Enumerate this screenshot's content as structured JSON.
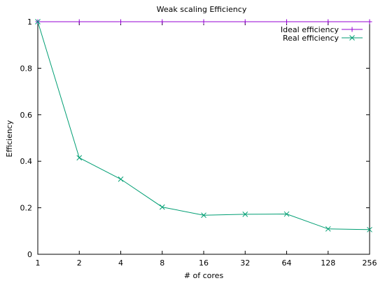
{
  "chart_data": {
    "type": "line",
    "title": "Weak scaling Efficiency",
    "xlabel": "# of cores",
    "ylabel": "Efficiency",
    "x": [
      1,
      2,
      4,
      8,
      16,
      32,
      64,
      128,
      256
    ],
    "x_scale": "log2",
    "ylim": [
      0,
      1
    ],
    "yticks": [
      0,
      0.2,
      0.4,
      0.6,
      0.8,
      1
    ],
    "xticks": [
      1,
      2,
      4,
      8,
      16,
      32,
      64,
      128,
      256
    ],
    "grid": false,
    "legend_position": "top-right",
    "series": [
      {
        "name": "Ideal efficiency",
        "color": "#9400d3",
        "marker": "plus",
        "values": [
          1,
          1,
          1,
          1,
          1,
          1,
          1,
          1,
          1
        ]
      },
      {
        "name": "Real efficiency",
        "color": "#009e73",
        "marker": "cross",
        "values": [
          1.0,
          0.415,
          0.323,
          0.203,
          0.168,
          0.172,
          0.173,
          0.109,
          0.106
        ]
      }
    ]
  }
}
